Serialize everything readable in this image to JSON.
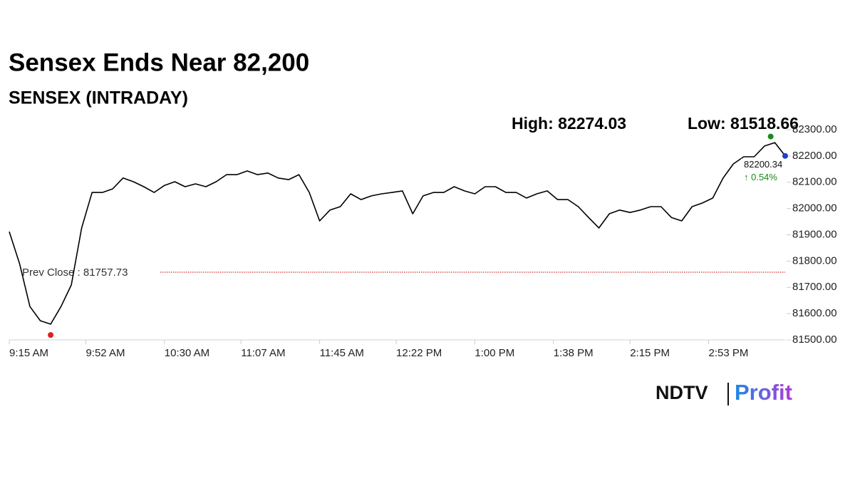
{
  "chart_data": {
    "type": "line",
    "title": "Sensex Ends Near 82,200",
    "subtitle": "SENSEX (INTRADAY)",
    "color": "#000000",
    "x": [
      "9:15 AM",
      "9:20 AM",
      "9:25 AM",
      "9:30 AM",
      "9:35 AM",
      "9:40 AM",
      "9:45 AM",
      "9:50 AM",
      "9:55 AM",
      "10:00 AM",
      "10:05 AM",
      "10:10 AM",
      "10:15 AM",
      "10:20 AM",
      "10:25 AM",
      "10:30 AM",
      "10:35 AM",
      "10:40 AM",
      "10:45 AM",
      "10:50 AM",
      "10:55 AM",
      "11:00 AM",
      "11:05 AM",
      "11:10 AM",
      "11:15 AM",
      "11:20 AM",
      "11:25 AM",
      "11:30 AM",
      "11:35 AM",
      "11:40 AM",
      "11:45 AM",
      "11:50 AM",
      "11:55 AM",
      "12:00 PM",
      "12:05 PM",
      "12:10 PM",
      "12:15 PM",
      "12:20 PM",
      "12:25 PM",
      "12:30 PM",
      "12:35 PM",
      "12:40 PM",
      "12:45 PM",
      "12:50 PM",
      "12:55 PM",
      "1:00 PM",
      "1:05 PM",
      "1:10 PM",
      "1:15 PM",
      "1:20 PM",
      "1:25 PM",
      "1:30 PM",
      "1:35 PM",
      "1:40 PM",
      "1:45 PM",
      "1:50 PM",
      "1:55 PM",
      "2:00 PM",
      "2:05 PM",
      "2:10 PM",
      "2:15 PM",
      "2:20 PM",
      "2:25 PM",
      "2:30 PM",
      "2:35 PM",
      "2:40 PM",
      "2:45 PM",
      "2:50 PM",
      "2:55 PM",
      "3:00 PM",
      "3:05 PM",
      "3:10 PM",
      "3:15 PM",
      "3:20 PM",
      "3:25 PM",
      "3:30 PM"
    ],
    "values": [
      81912,
      81790,
      81627,
      81573,
      81560,
      81627,
      81709,
      81926,
      82061,
      82061,
      82075,
      82116,
      82102,
      82083,
      82061,
      82088,
      82102,
      82083,
      82094,
      82083,
      82102,
      82129,
      82129,
      82143,
      82129,
      82135,
      82116,
      82110,
      82129,
      82061,
      81953,
      81994,
      82007,
      82056,
      82034,
      82048,
      82056,
      82061,
      82067,
      81980,
      82048,
      82061,
      82061,
      82083,
      82067,
      82056,
      82083,
      82083,
      82061,
      82061,
      82040,
      82056,
      82067,
      82034,
      82034,
      82007,
      81966,
      81926,
      81980,
      81994,
      81985,
      81994,
      82007,
      82007,
      81966,
      81953,
      82007,
      82021,
      82040,
      82116,
      82170,
      82197,
      82197,
      82238,
      82251,
      82200.34
    ],
    "xlim": [
      "9:15 AM",
      "3:30 PM"
    ],
    "xticks": [
      "9:15 AM",
      "9:52 AM",
      "10:30 AM",
      "11:07 AM",
      "11:45 AM",
      "12:22 PM",
      "1:00 PM",
      "1:38 PM",
      "2:15 PM",
      "2:53 PM"
    ],
    "ylim": [
      81500,
      82300
    ],
    "yticks": [
      {
        "value": 81500,
        "label": "81500.00"
      },
      {
        "value": 81600,
        "label": "81600.00"
      },
      {
        "value": 81700,
        "label": "81700.00"
      },
      {
        "value": 81800,
        "label": "81800.00"
      },
      {
        "value": 81900,
        "label": "81900.00"
      },
      {
        "value": 82000,
        "label": "82000.00"
      },
      {
        "value": 82100,
        "label": "82100.00"
      },
      {
        "value": 82200,
        "label": "82200.00"
      },
      {
        "value": 82300,
        "label": "82300.00"
      }
    ],
    "annotations": {
      "high": {
        "label": "High: 82274.03",
        "value": 82274.03,
        "x": "3:23 PM",
        "color": "#1a8a1a"
      },
      "low": {
        "label": "Low: 81518.66",
        "value": 81518.66,
        "x": "9:35 AM",
        "color": "#e02020"
      },
      "prev_close": {
        "label": "Prev Close : 81757.73",
        "value": 81757.73,
        "color": "#c00000"
      },
      "close": {
        "value": 82200.34,
        "x": "3:30 PM",
        "color": "#1f3fd0"
      },
      "change": {
        "label": "↑ 0.54%",
        "value": 0.54,
        "color": "#1a8a1a"
      }
    }
  },
  "brand": {
    "name": "NDTV",
    "product": "Profit"
  }
}
